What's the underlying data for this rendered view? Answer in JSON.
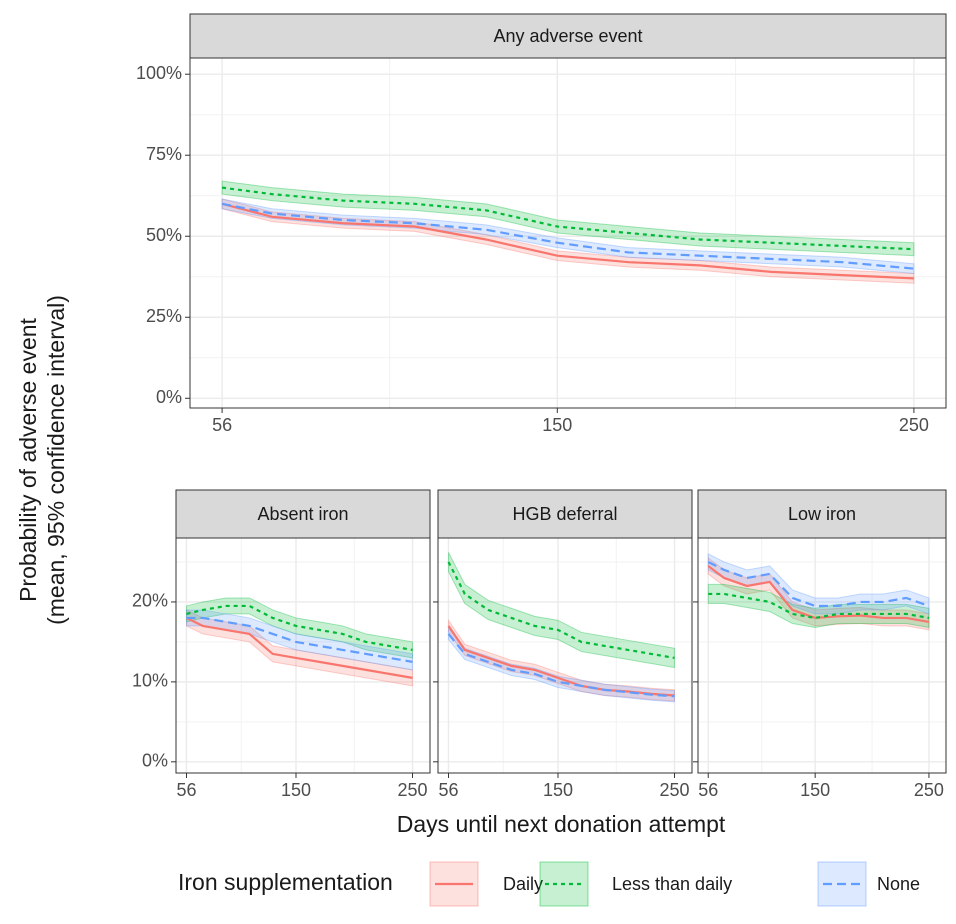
{
  "chart_data": [
    {
      "type": "line",
      "title": "Any adverse event",
      "x": [
        56,
        70,
        90,
        110,
        130,
        150,
        170,
        190,
        210,
        230,
        250
      ],
      "xlim": [
        47,
        259
      ],
      "xticks": [
        56,
        150,
        250
      ],
      "ylim": [
        -3,
        105
      ],
      "yticks": [
        {
          "value": 0,
          "label": "0%"
        },
        {
          "value": 25,
          "label": "25%"
        },
        {
          "value": 50,
          "label": "50%"
        },
        {
          "value": 75,
          "label": "75%"
        },
        {
          "value": 100,
          "label": "100%"
        }
      ],
      "grid": true,
      "series": [
        {
          "name": "Daily",
          "color": "#F8766D",
          "linetype": "solid",
          "values": [
            60,
            56,
            54,
            53,
            49,
            44,
            42,
            41,
            39,
            38,
            37
          ],
          "lower": [
            58.5,
            54.5,
            52.5,
            51.5,
            47.5,
            42.5,
            40.5,
            39.5,
            37.5,
            36.5,
            35.5
          ],
          "upper": [
            61.5,
            57.5,
            55.5,
            54.5,
            50.5,
            45.5,
            43.5,
            42.5,
            40.5,
            39.5,
            38.5
          ]
        },
        {
          "name": "Less than daily",
          "color": "#00BA38",
          "linetype": "dotted",
          "values": [
            65,
            63,
            61,
            60,
            58,
            53,
            51,
            49,
            48,
            47,
            46
          ],
          "lower": [
            63,
            61,
            59,
            58,
            56,
            51,
            49,
            47,
            46,
            45,
            44
          ],
          "upper": [
            67,
            65,
            63,
            62,
            60,
            55,
            53,
            51,
            50,
            49,
            48
          ]
        },
        {
          "name": "None",
          "color": "#619CFF",
          "linetype": "dashed",
          "values": [
            60,
            57,
            55,
            54,
            52,
            48,
            45,
            44,
            43,
            42,
            40
          ],
          "lower": [
            58.5,
            55.5,
            53.5,
            52.5,
            50.5,
            46.5,
            43.5,
            42.5,
            41.5,
            40.5,
            38.5
          ],
          "upper": [
            61.5,
            58.5,
            56.5,
            55.5,
            53.5,
            49.5,
            46.5,
            45.5,
            44.5,
            43.5,
            41.5
          ]
        }
      ]
    },
    {
      "type": "line",
      "title": "Absent iron",
      "x": [
        56,
        70,
        90,
        110,
        130,
        150,
        170,
        190,
        210,
        230,
        250
      ],
      "xlim": [
        47,
        265
      ],
      "xticks": [
        56,
        150,
        250
      ],
      "ylim": [
        -1.4,
        28
      ],
      "yticks": [
        {
          "value": 0,
          "label": "0%"
        },
        {
          "value": 10,
          "label": "10%"
        },
        {
          "value": 20,
          "label": "20%"
        }
      ],
      "grid": true,
      "series": [
        {
          "name": "Daily",
          "color": "#F8766D",
          "linetype": "solid",
          "values": [
            18,
            17,
            16.5,
            16,
            13.5,
            13,
            12.5,
            12,
            11.5,
            11,
            10.5
          ],
          "lower": [
            17,
            16,
            15.5,
            15,
            12.5,
            12,
            11.5,
            11,
            10.5,
            10,
            9.5
          ],
          "upper": [
            19,
            18,
            17.5,
            17,
            14.5,
            14,
            13.5,
            13,
            12.5,
            12,
            11.5
          ]
        },
        {
          "name": "Less than daily",
          "color": "#00BA38",
          "linetype": "dotted",
          "values": [
            18.5,
            19,
            19.5,
            19.5,
            18,
            17,
            16.5,
            16,
            15,
            14.5,
            14
          ],
          "lower": [
            17.5,
            18,
            18.5,
            18.5,
            17,
            16,
            15.5,
            15,
            14,
            13.5,
            13
          ],
          "upper": [
            19.5,
            20,
            20.5,
            20.5,
            19,
            18,
            17.5,
            17,
            16,
            15.5,
            15
          ]
        },
        {
          "name": "None",
          "color": "#619CFF",
          "linetype": "dashed",
          "values": [
            18,
            18,
            17.5,
            17,
            16,
            15,
            14.5,
            14,
            13.5,
            13,
            12.5
          ],
          "lower": [
            17,
            17,
            16.5,
            16,
            15,
            14,
            13.5,
            13,
            12.5,
            12,
            11.5
          ],
          "upper": [
            19,
            19,
            18.5,
            18,
            17,
            16,
            15.5,
            15,
            14.5,
            14,
            13.5
          ]
        }
      ]
    },
    {
      "type": "line",
      "title": "HGB deferral",
      "x": [
        56,
        70,
        90,
        110,
        130,
        150,
        170,
        190,
        210,
        230,
        250
      ],
      "xlim": [
        47,
        265
      ],
      "xticks": [
        56,
        150,
        250
      ],
      "ylim": [
        -1.4,
        28
      ],
      "yticks": [
        {
          "value": 0,
          "label": "0%"
        },
        {
          "value": 10,
          "label": "10%"
        },
        {
          "value": 20,
          "label": "20%"
        }
      ],
      "grid": true,
      "series": [
        {
          "name": "Daily",
          "color": "#F8766D",
          "linetype": "solid",
          "values": [
            17,
            14,
            13,
            12,
            11.5,
            10.5,
            9.5,
            9,
            8.8,
            8.5,
            8.3
          ],
          "lower": [
            16.3,
            13.3,
            12.3,
            11.3,
            10.8,
            9.8,
            8.8,
            8.3,
            8.1,
            7.8,
            7.6
          ],
          "upper": [
            17.7,
            14.7,
            13.7,
            12.7,
            12.2,
            11.2,
            10.2,
            9.7,
            9.5,
            9.2,
            9.0
          ]
        },
        {
          "name": "Less than daily",
          "color": "#00BA38",
          "linetype": "dotted",
          "values": [
            25,
            21,
            19,
            18,
            17,
            16.5,
            15,
            14.5,
            14,
            13.5,
            13
          ],
          "lower": [
            23.8,
            19.8,
            17.8,
            16.8,
            15.8,
            15.3,
            13.8,
            13.3,
            12.8,
            12.3,
            11.8
          ],
          "upper": [
            26.2,
            22.2,
            20.2,
            19.2,
            18.2,
            17.7,
            16.2,
            15.7,
            15.2,
            14.7,
            14.2
          ]
        },
        {
          "name": "None",
          "color": "#619CFF",
          "linetype": "dashed",
          "values": [
            16,
            13.5,
            12.5,
            11.5,
            11,
            10,
            9.5,
            9,
            8.7,
            8.4,
            8.2
          ],
          "lower": [
            15.3,
            12.8,
            11.8,
            10.8,
            10.3,
            9.3,
            8.8,
            8.3,
            8,
            7.7,
            7.5
          ],
          "upper": [
            16.7,
            14.2,
            13.2,
            12.2,
            11.7,
            10.7,
            10.2,
            9.7,
            9.4,
            9.1,
            8.9
          ]
        }
      ]
    },
    {
      "type": "line",
      "title": "Low iron",
      "x": [
        56,
        70,
        90,
        110,
        130,
        150,
        170,
        190,
        210,
        230,
        250
      ],
      "xlim": [
        47,
        265
      ],
      "xticks": [
        56,
        150,
        250
      ],
      "ylim": [
        -1.4,
        28
      ],
      "yticks": [
        {
          "value": 0,
          "label": "0%"
        },
        {
          "value": 10,
          "label": "10%"
        },
        {
          "value": 20,
          "label": "20%"
        }
      ],
      "grid": true,
      "series": [
        {
          "name": "Daily",
          "color": "#F8766D",
          "linetype": "solid",
          "values": [
            24.5,
            23,
            22,
            22.5,
            19,
            18,
            18.2,
            18.3,
            18,
            18,
            17.5
          ],
          "lower": [
            23.5,
            22,
            21,
            21.5,
            18,
            17,
            17.2,
            17.3,
            17,
            17,
            16.5
          ],
          "upper": [
            25.5,
            24,
            23,
            23.5,
            20,
            19,
            19.2,
            19.3,
            19,
            19,
            18.5
          ]
        },
        {
          "name": "Less than daily",
          "color": "#00BA38",
          "linetype": "dotted",
          "values": [
            21,
            21,
            20.5,
            20,
            18.5,
            18,
            18.5,
            18.5,
            18.5,
            18.5,
            18
          ],
          "lower": [
            19.8,
            19.8,
            19.3,
            18.8,
            17.3,
            16.8,
            17.3,
            17.3,
            17.3,
            17.3,
            16.8
          ],
          "upper": [
            22.2,
            22.2,
            21.7,
            21.2,
            19.7,
            19.2,
            19.7,
            19.7,
            19.7,
            19.7,
            19.2
          ]
        },
        {
          "name": "None",
          "color": "#619CFF",
          "linetype": "dashed",
          "values": [
            25,
            24,
            23,
            23.5,
            20.5,
            19.5,
            19.5,
            20,
            20,
            20.5,
            19.5
          ],
          "lower": [
            24,
            23,
            22,
            22.5,
            19.5,
            18.5,
            18.5,
            19,
            19,
            19.5,
            18.5
          ],
          "upper": [
            26,
            25,
            24,
            24.5,
            21.5,
            20.5,
            20.5,
            21,
            21,
            21.5,
            20.5
          ]
        }
      ]
    }
  ],
  "ylabel": [
    "Probability of adverse event",
    "(mean, 95% confidence interval)"
  ],
  "xlabel": "Days until next donation attempt",
  "legend": {
    "title": "Iron supplementation"
  }
}
